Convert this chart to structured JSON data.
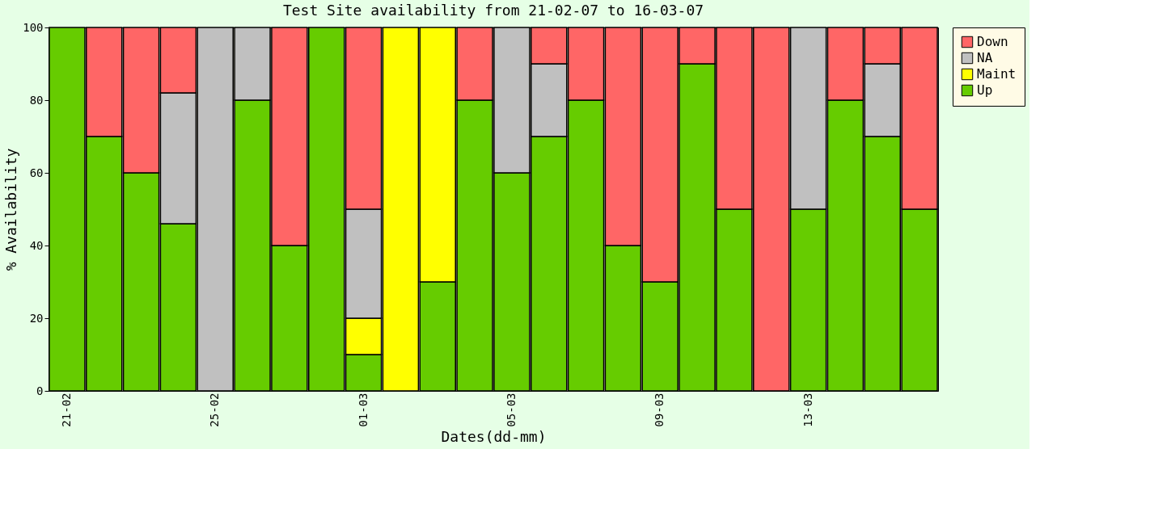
{
  "chart_data": {
    "type": "bar",
    "title": "Test Site availability from 21-02-07 to 16-03-07",
    "xlabel": "Dates(dd-mm)",
    "ylabel": "% Availability",
    "categories": [
      "21-02",
      null,
      null,
      null,
      "25-02",
      null,
      null,
      null,
      "01-03",
      null,
      null,
      null,
      "05-03",
      null,
      null,
      null,
      "09-03",
      null,
      null,
      null,
      "13-03",
      null,
      null,
      null
    ],
    "stacked": true,
    "ylim": [
      0,
      100
    ],
    "yticks": [
      0,
      20,
      40,
      60,
      80,
      100
    ],
    "grid": false,
    "legend": "right",
    "series": [
      {
        "name": "Up",
        "color": "#66cc00",
        "values": [
          100,
          70,
          60,
          46,
          0,
          80,
          40,
          100,
          10,
          0,
          30,
          80,
          60,
          70,
          80,
          40,
          30,
          90,
          50,
          0,
          50,
          80,
          70,
          50
        ]
      },
      {
        "name": "Maint",
        "color": "#ffff00",
        "values": [
          0,
          0,
          0,
          0,
          0,
          0,
          0,
          0,
          10,
          100,
          70,
          0,
          0,
          0,
          0,
          0,
          0,
          0,
          0,
          0,
          0,
          0,
          0,
          0
        ]
      },
      {
        "name": "NA",
        "color": "#c0c0c0",
        "values": [
          0,
          0,
          0,
          36,
          100,
          20,
          0,
          0,
          30,
          0,
          0,
          0,
          40,
          20,
          0,
          0,
          0,
          0,
          0,
          0,
          50,
          0,
          20,
          0
        ]
      },
      {
        "name": "Down",
        "color": "#ff6666",
        "values": [
          0,
          30,
          40,
          18,
          0,
          0,
          60,
          0,
          50,
          0,
          0,
          20,
          0,
          10,
          20,
          60,
          70,
          10,
          50,
          100,
          0,
          20,
          10,
          50
        ]
      }
    ]
  }
}
